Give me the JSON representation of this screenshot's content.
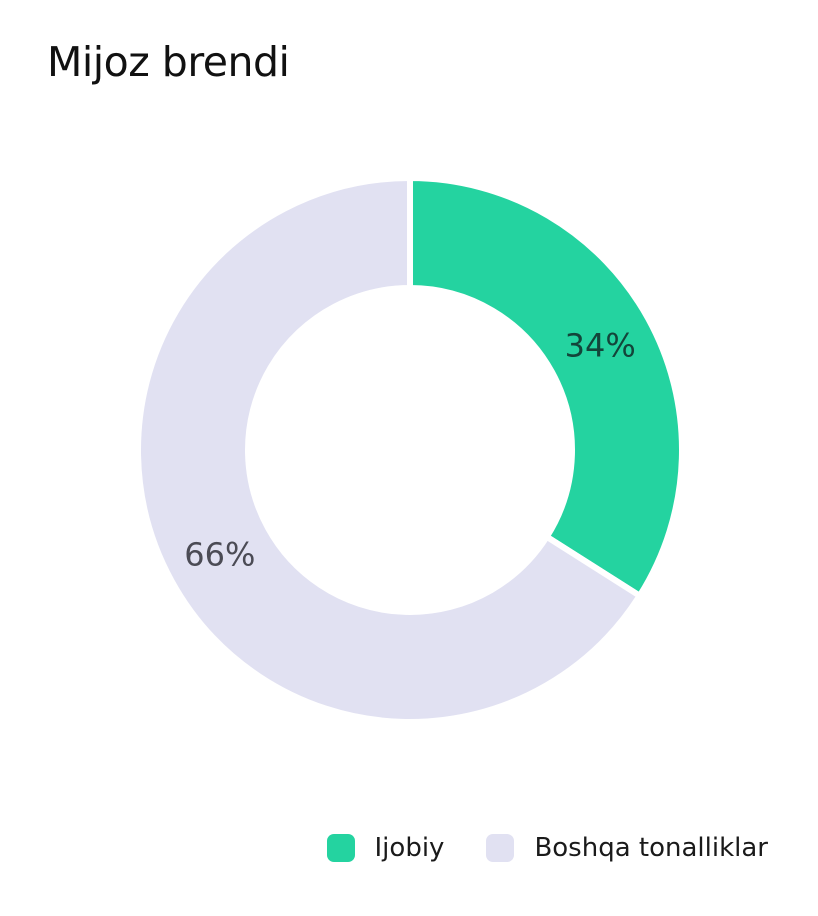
{
  "chart_data": {
    "type": "pie",
    "title": "Mijoz brendi",
    "categories": [
      "Ijobiy",
      "Boshqa tonalliklar"
    ],
    "values": [
      34,
      66
    ],
    "labels": [
      "34%",
      "66%"
    ],
    "colors": [
      "#24d3a0",
      "#e1e1f2"
    ],
    "label_colors": [
      "#13453a",
      "#4b4b55"
    ],
    "donut": true,
    "legend_position": "bottom-right"
  }
}
